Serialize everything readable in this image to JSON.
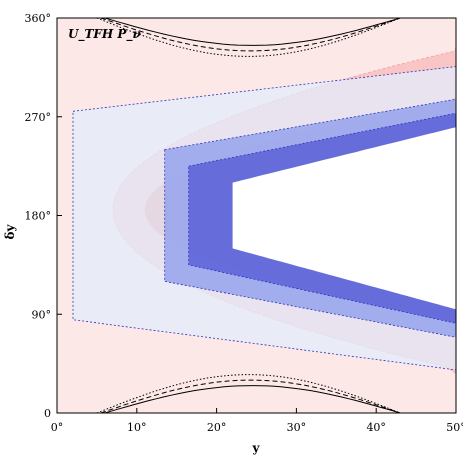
{
  "chart_data": {
    "type": "contour",
    "xlabel": "y",
    "ylabel": "δy",
    "xlim": [
      0,
      50
    ],
    "ylim": [
      0,
      360
    ],
    "x_ticks": [
      {
        "value": 0,
        "label": "0°"
      },
      {
        "value": 10,
        "label": "10°"
      },
      {
        "value": 20,
        "label": "20°"
      },
      {
        "value": 30,
        "label": "30°"
      },
      {
        "value": 40,
        "label": "40°"
      },
      {
        "value": 50,
        "label": "50°"
      }
    ],
    "y_ticks": [
      {
        "value": 0,
        "label": "0"
      },
      {
        "value": 90,
        "label": "90°"
      },
      {
        "value": 180,
        "label": "180°"
      },
      {
        "value": 270,
        "label": "270°"
      },
      {
        "value": 360,
        "label": "360°"
      }
    ],
    "annotation": "U_TFH P_ν",
    "colors": {
      "red_light": "#fde8e8",
      "red_mid": "#f9c5c5",
      "red_dark": "#f29a9a",
      "blue_light": "#e2ecfb",
      "blue_mid": "#9aa6ec",
      "blue_dark": "#5f66d9",
      "blue_edge": "#2e2fbf",
      "black": "#000000"
    },
    "red_bands": [
      {
        "name": "red_light",
        "vertex_x": 0.5,
        "half_width": 180
      },
      {
        "name": "red_mid",
        "vertex_x": 7,
        "half_width": 140
      },
      {
        "name": "red_dark",
        "vertex_x": 11,
        "half_width": 100
      }
    ],
    "blue_bands": [
      {
        "name": "blue_light",
        "vertex_x": 2,
        "center": 180,
        "half_width_at_vertex": 95
      },
      {
        "name": "blue_mid",
        "vertex_x": 13.5,
        "center": 180,
        "half_width_at_vertex": 60
      },
      {
        "name": "blue_dark",
        "vertex_x": 16.5,
        "center": 180,
        "half_width_at_vertex": 45
      }
    ],
    "black_contours": [
      {
        "style": "solid",
        "y_min_x": 6,
        "level": 335
      },
      {
        "style": "dashed",
        "y_min_x": 5.5,
        "level": 330
      },
      {
        "style": "dotted",
        "y_min_x": 5,
        "level": 325
      }
    ]
  }
}
